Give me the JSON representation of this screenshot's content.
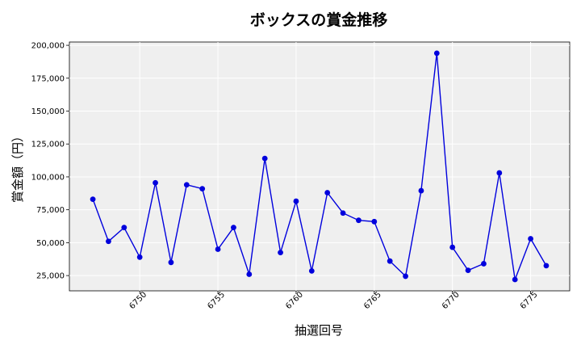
{
  "chart_data": {
    "type": "line",
    "title": "ボックスの賞金推移",
    "xlabel": "抽選回号",
    "ylabel": "賞金額（円）",
    "x": [
      6747,
      6748,
      6749,
      6750,
      6751,
      6752,
      6753,
      6754,
      6755,
      6756,
      6757,
      6758,
      6759,
      6760,
      6761,
      6762,
      6763,
      6764,
      6765,
      6766,
      6767,
      6768,
      6769,
      6770,
      6771,
      6772,
      6773,
      6774,
      6775,
      6776
    ],
    "series": [
      {
        "values": [
          83000,
          51000,
          61500,
          39000,
          95500,
          35000,
          94000,
          91000,
          45000,
          61500,
          26000,
          114000,
          42500,
          81500,
          28500,
          88000,
          72500,
          67000,
          66000,
          36000,
          24500,
          89500,
          194000,
          46500,
          29000,
          34000,
          103000,
          22000,
          53000,
          32500
        ]
      }
    ],
    "x_ticks": [
      6750,
      6755,
      6760,
      6765,
      6770,
      6775
    ],
    "y_ticks": [
      25000,
      50000,
      75000,
      100000,
      125000,
      150000,
      175000,
      200000
    ],
    "y_tick_labels": [
      "25,000",
      "50,000",
      "75,000",
      "100,000",
      "125,000",
      "150,000",
      "175,000",
      "200,000"
    ],
    "xlim": [
      6745.5,
      6777.5
    ],
    "ylim": [
      13400,
      202500
    ],
    "grid": true,
    "colors": {
      "line": "#0000dd",
      "plot_bg": "#efefef",
      "grid": "#ffffff"
    }
  }
}
